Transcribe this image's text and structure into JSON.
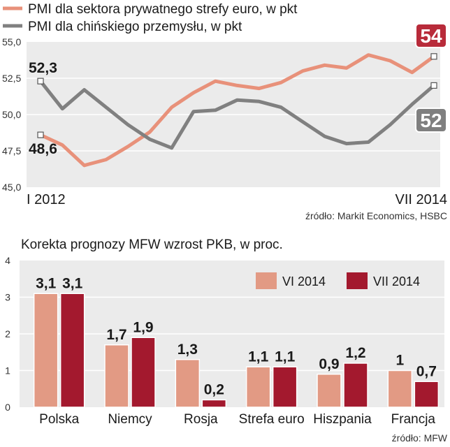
{
  "chart_data": [
    {
      "type": "line",
      "legend": [
        {
          "label": "PMI dla sektora prywatnego strefy euro, w pkt",
          "color": "#e8917a"
        },
        {
          "label": "PMI dla chińskiego przemysłu, w pkt",
          "color": "#808080"
        }
      ],
      "yticks": [
        "55,0",
        "52,5",
        "50,0",
        "47,5",
        "45,0"
      ],
      "ytick_values": [
        55,
        52.5,
        50,
        47.5,
        45
      ],
      "ylim": [
        45,
        55
      ],
      "x_start_label": "I 2012",
      "x_end_label": "VII 2014",
      "series": [
        {
          "name": "PMI dla sektora prywatnego strefy euro",
          "color": "#e8917a",
          "values": [
            48.6,
            47.9,
            46.5,
            46.9,
            47.8,
            48.8,
            50.5,
            51.5,
            52.3,
            52.0,
            51.8,
            52.2,
            53.0,
            53.4,
            53.2,
            54.1,
            53.7,
            52.9,
            54.0
          ],
          "start_label": "48,6",
          "end_label": "54"
        },
        {
          "name": "PMI dla chińskiego przemysłu",
          "color": "#808080",
          "values": [
            52.3,
            50.4,
            51.7,
            50.5,
            49.3,
            48.3,
            47.7,
            50.2,
            50.3,
            51.0,
            50.9,
            50.5,
            49.5,
            48.5,
            48.0,
            48.1,
            49.3,
            50.7,
            52.0
          ],
          "start_label": "52,3",
          "end_label": "52"
        }
      ],
      "source": "źródło: Markit Economics, HSBC"
    },
    {
      "type": "bar",
      "title": "Korekta prognozy MFW wzrost PKB, w proc.",
      "yticks": [
        "4",
        "3",
        "2",
        "1",
        "0"
      ],
      "ytick_values": [
        4,
        3,
        2,
        1,
        0
      ],
      "ylim": [
        0,
        4
      ],
      "categories": [
        "Polska",
        "Niemcy",
        "Rosja",
        "Strefa euro",
        "Hiszpania",
        "Francja"
      ],
      "series": [
        {
          "name": "VI 2014",
          "color": "#e29a84",
          "values": [
            3.1,
            1.7,
            1.3,
            1.1,
            0.9,
            1.0
          ],
          "labels": [
            "3,1",
            "1,7",
            "1,3",
            "1,1",
            "0,9",
            "1"
          ]
        },
        {
          "name": "VII 2014",
          "color": "#a3192e",
          "values": [
            3.1,
            1.9,
            0.2,
            1.1,
            1.2,
            0.7
          ],
          "labels": [
            "3,1",
            "1,9",
            "0,2",
            "1,1",
            "1,2",
            "0,7"
          ]
        }
      ],
      "source": "źródło: MFW"
    }
  ]
}
